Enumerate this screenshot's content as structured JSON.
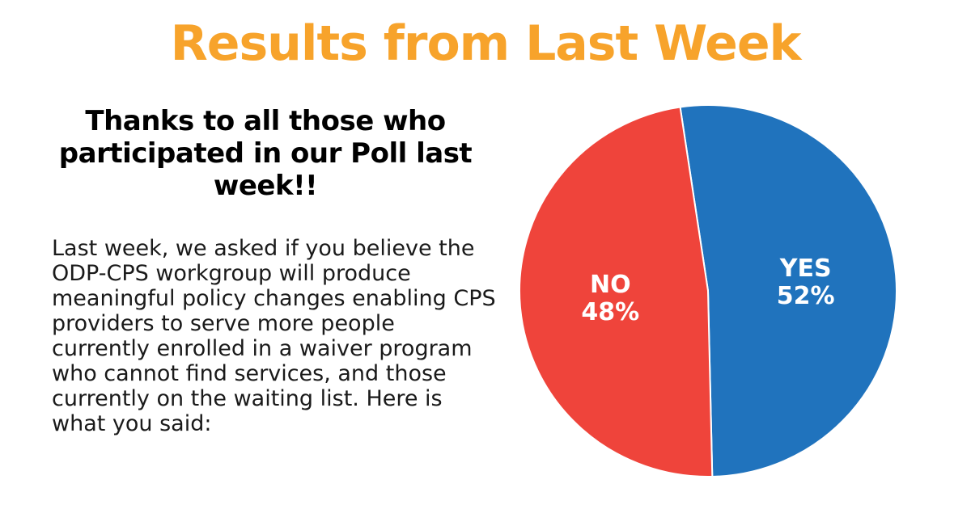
{
  "title": "Results from Last Week",
  "subheading": "Thanks to all those who participated in our Poll last week!!",
  "body": "Last week, we asked if you believe the ODP-CPS workgroup will produce meaningful policy changes enabling CPS providers to serve more people currently enrolled in a waiver program who cannot find services, and those currently on the waiting list. Here is what you said:",
  "colors": {
    "title": "#f7a32b",
    "yes": "#2073bd",
    "no": "#ef443b"
  },
  "chart_data": {
    "type": "pie",
    "slices": [
      {
        "label": "YES",
        "value": 52,
        "display": "52%",
        "color": "#2073bd"
      },
      {
        "label": "NO",
        "value": 48,
        "display": "48%",
        "color": "#ef443b"
      }
    ]
  }
}
